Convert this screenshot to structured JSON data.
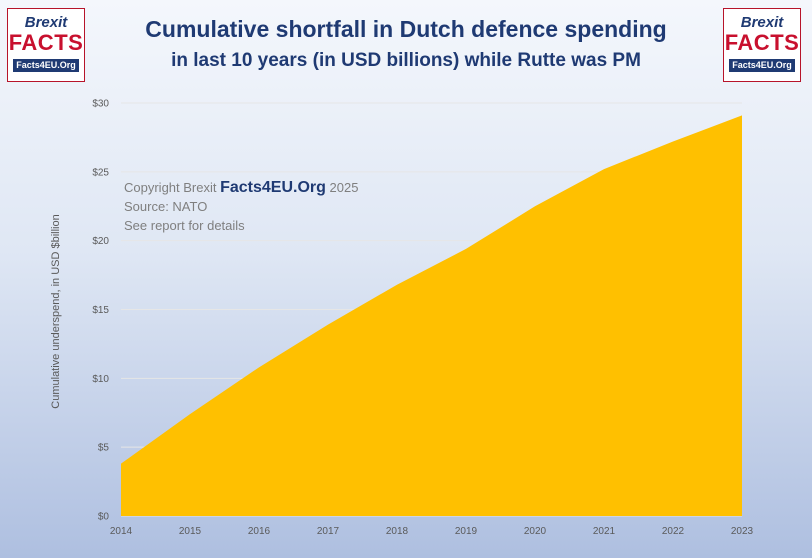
{
  "header": {
    "title": "Cumulative shortfall in Dutch defence spending",
    "subtitle": "in last 10 years (in USD billions) while Rutte was PM"
  },
  "logo": {
    "line1": "Brexit",
    "line2": "FACTS",
    "line3": "Facts4EU.Org"
  },
  "note": {
    "copyright_prefix": "Copyright Brexit",
    "brand": "Facts4EU.Org",
    "year": "2025",
    "source": "Source: NATO",
    "details": "See report for details"
  },
  "colors": {
    "area": "#ffc000",
    "title": "#1f3a73",
    "brand_red": "#c8102e"
  },
  "chart_data": {
    "type": "area",
    "title": "Cumulative shortfall in Dutch defence spending",
    "x": [
      2014,
      2015,
      2016,
      2017,
      2018,
      2019,
      2020,
      2021,
      2022,
      2023
    ],
    "values": [
      3.8,
      7.4,
      10.8,
      13.9,
      16.8,
      19.4,
      22.5,
      25.2,
      27.2,
      29.1
    ],
    "xlabel": "",
    "ylabel": "Cumulative underspend, in USD $billion",
    "ylim": [
      0,
      30
    ],
    "yticks": [
      0,
      5,
      10,
      15,
      20,
      25,
      30
    ],
    "ytick_labels": [
      "$0",
      "$5",
      "$10",
      "$15",
      "$20",
      "$25",
      "$30"
    ],
    "grid": true
  }
}
